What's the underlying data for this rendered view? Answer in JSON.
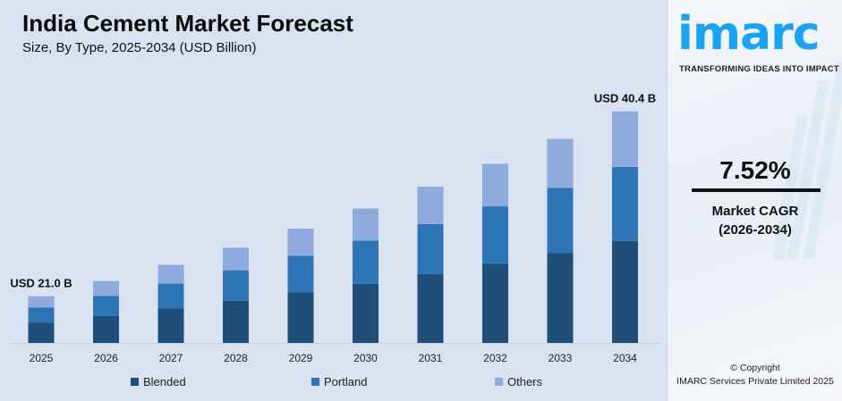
{
  "header": {
    "title": "India Cement Market Forecast",
    "subtitle": "Size, By Type, 2025-2034 (USD Billion)"
  },
  "chart_data": {
    "type": "bar",
    "stacked": true,
    "categories": [
      "2025",
      "2026",
      "2027",
      "2028",
      "2029",
      "2030",
      "2031",
      "2032",
      "2033",
      "2034"
    ],
    "series": [
      {
        "name": "Blended",
        "color": "#1f4e79",
        "values": [
          9.2,
          9.9,
          10.7,
          11.5,
          12.4,
          13.3,
          14.3,
          15.4,
          16.5,
          17.8
        ]
      },
      {
        "name": "Portland",
        "color": "#2e75b6",
        "values": [
          6.8,
          7.2,
          7.8,
          8.4,
          9.0,
          9.7,
          10.4,
          11.2,
          12.0,
          12.9
        ]
      },
      {
        "name": "Others",
        "color": "#8faadc",
        "values": [
          5.0,
          5.5,
          5.8,
          6.2,
          6.7,
          7.2,
          7.8,
          8.3,
          9.0,
          9.7
        ]
      }
    ],
    "annotations": [
      {
        "category": "2025",
        "text": "USD 21.0 B"
      },
      {
        "category": "2034",
        "text": "USD 40.4 B"
      }
    ],
    "title": "India Cement Market Forecast",
    "subtitle": "Size, By Type, 2025-2034 (USD Billion)",
    "grid": false,
    "legend": "bottom"
  },
  "sidebar": {
    "logo": "imarc",
    "tagline": "TRANSFORMING IDEAS INTO IMPACT",
    "cagr_value": "7.52%",
    "cagr_label": "Market CAGR",
    "cagr_period": "(2026-2034)",
    "copyright": "© Copyright",
    "company": "IMARC Services Private Limited 2025",
    "brand_color": "#1aa3f0"
  }
}
